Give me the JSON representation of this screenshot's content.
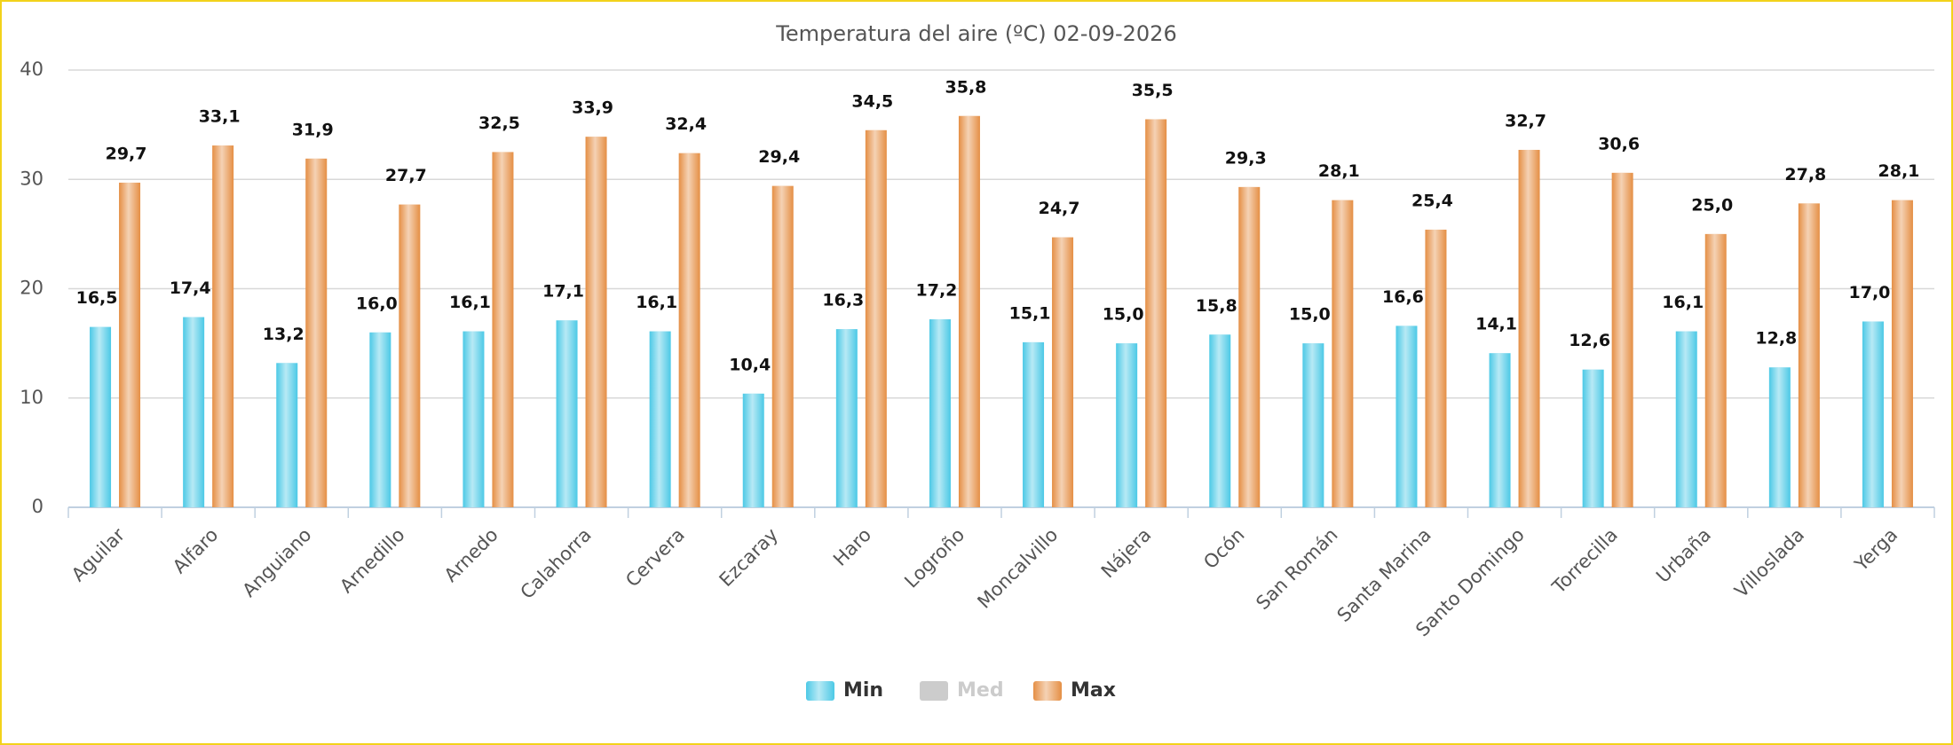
{
  "chart_data": {
    "type": "bar",
    "title": "Temperatura del aire (ºC) 02-09-2026",
    "categories": [
      "Aguilar",
      "Alfaro",
      "Anguiano",
      "Arnedillo",
      "Arnedo",
      "Calahorra",
      "Cervera",
      "Ezcaray",
      "Haro",
      "Logroño",
      "Moncalvillo",
      "Nájera",
      "Ocón",
      "San Román",
      "Santa Marina",
      "Santo Domingo",
      "Torrecilla",
      "Urbaña",
      "Villoslada",
      "Yerga"
    ],
    "series": [
      {
        "name": "Min",
        "color": "#4cc9e6",
        "visible": true,
        "values": [
          16.5,
          17.4,
          13.2,
          16.0,
          16.1,
          17.1,
          16.1,
          10.4,
          16.3,
          17.2,
          15.1,
          15.0,
          15.8,
          15.0,
          16.6,
          14.1,
          12.6,
          16.1,
          12.8,
          17.0
        ],
        "value_labels": [
          "16,5",
          "17,4",
          "13,2",
          "16,0",
          "16,1",
          "17,1",
          "16,1",
          "10,4",
          "16,3",
          "17,2",
          "15,1",
          "15,0",
          "15,8",
          "15,0",
          "16,6",
          "14,1",
          "12,6",
          "16,1",
          "12,8",
          "17,0"
        ]
      },
      {
        "name": "Med",
        "color": "#cccccc",
        "visible": false,
        "values": [
          null,
          null,
          null,
          null,
          null,
          null,
          null,
          null,
          null,
          null,
          null,
          null,
          null,
          null,
          null,
          null,
          null,
          null,
          null,
          null
        ]
      },
      {
        "name": "Max",
        "color": "#e58f45",
        "visible": true,
        "values": [
          29.7,
          33.1,
          31.9,
          27.7,
          32.5,
          33.9,
          32.4,
          29.4,
          34.5,
          35.8,
          24.7,
          35.5,
          29.3,
          28.1,
          25.4,
          32.7,
          30.6,
          25.0,
          27.8,
          28.1
        ],
        "value_labels": [
          "29,7",
          "33,1",
          "31,9",
          "27,7",
          "32,5",
          "33,9",
          "32,4",
          "29,4",
          "34,5",
          "35,8",
          "24,7",
          "35,5",
          "29,3",
          "28,1",
          "25,4",
          "32,7",
          "30,6",
          "25,0",
          "27,8",
          "28,1"
        ]
      }
    ],
    "ylim": [
      0,
      40
    ],
    "yticks": [
      0,
      10,
      20,
      30,
      40
    ],
    "grid": true,
    "legend": "bottom"
  }
}
